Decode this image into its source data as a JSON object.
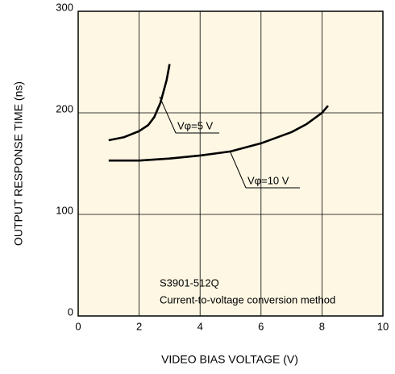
{
  "chart_data": {
    "type": "line",
    "x_label": "VIDEO BIAS VOLTAGE (V)",
    "y_label": "OUTPUT RESPONSE TIME (ns)",
    "annotations": [
      "S3901-512Q",
      "Current-to-voltage conversion method"
    ],
    "xlim": [
      0,
      10
    ],
    "xticks": [
      0,
      2,
      4,
      6,
      8,
      10
    ],
    "ylim": [
      0,
      300
    ],
    "yticks": [
      0,
      100,
      200,
      300
    ],
    "grid": true,
    "series": [
      {
        "name": "Vφ=5 V",
        "color": "#000000",
        "x": [
          1,
          1.5,
          2,
          2.3,
          2.5,
          2.7,
          2.9,
          3
        ],
        "values": [
          173,
          176,
          182,
          188,
          196,
          210,
          232,
          248
        ]
      },
      {
        "name": "Vφ=10 V",
        "color": "#000000",
        "x": [
          1,
          2,
          3,
          4,
          5,
          6,
          7,
          7.5,
          8,
          8.2
        ],
        "values": [
          153,
          153,
          155,
          158,
          162,
          170,
          181,
          189,
          200,
          207
        ]
      }
    ]
  }
}
